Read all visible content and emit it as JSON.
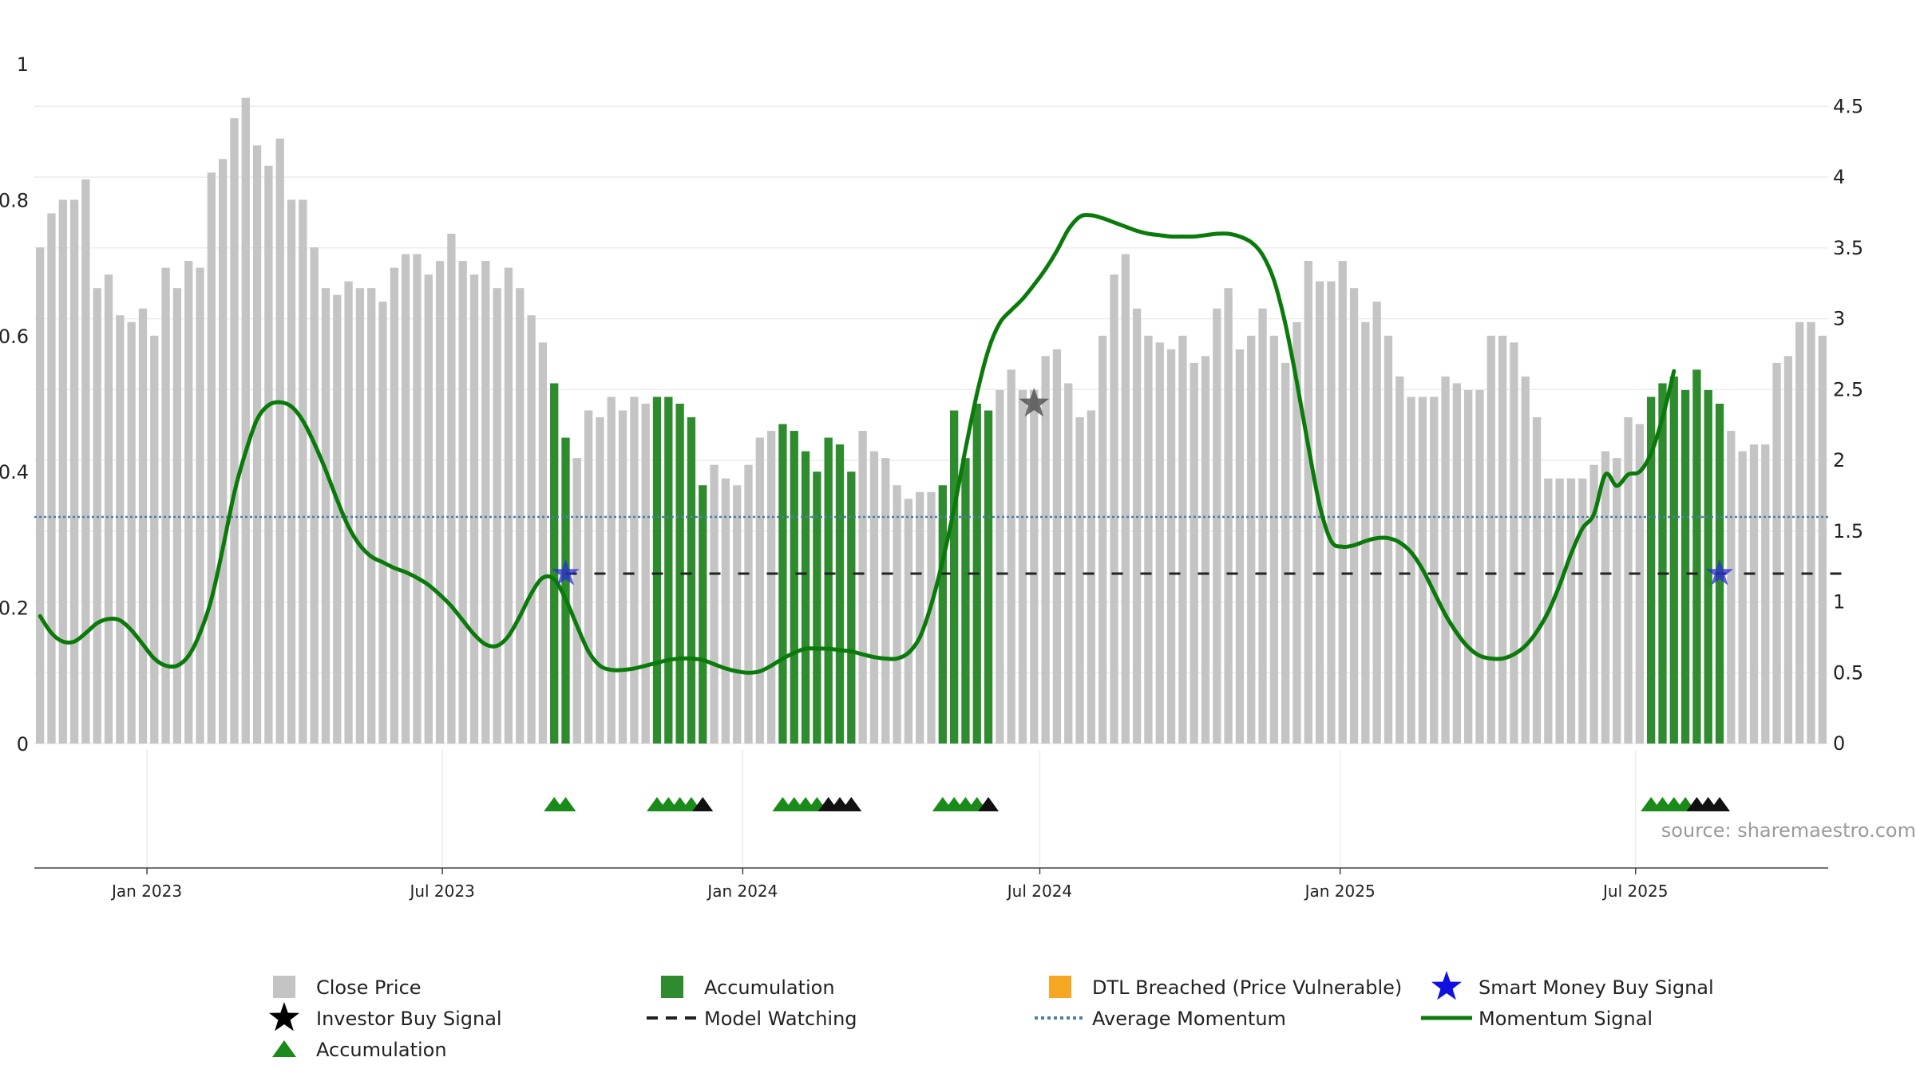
{
  "source_text": "source: sharemaestro.com",
  "colors": {
    "close_price": "#c4c4c4",
    "accumulation_bar": "#2e8b2e",
    "momentum": "#0a7a0a",
    "average": "#4a7fa8",
    "watching": "#222222",
    "investor_star": "#555555",
    "smart_star": "#2b2bd6",
    "triangle_green": "#1a8a1a",
    "triangle_black": "#111111",
    "dtl": "#f5a623"
  },
  "chart_data": {
    "type": "bar",
    "x_start": "2022-10-24",
    "x_interval_days": 7,
    "xaxis_ticks": [
      "Jan 2023",
      "Jul 2023",
      "Jan 2024",
      "Jul 2024",
      "Jan 2025",
      "Jul 2025"
    ],
    "left_axis": {
      "ylim": [
        0,
        1
      ],
      "ticks": [
        "0",
        "0.2",
        "0.4",
        "0.6",
        "0.8",
        "1"
      ]
    },
    "right_axis": {
      "ylim": [
        0,
        4.8
      ],
      "ticks": [
        "0",
        "0.5",
        "1",
        "1.5",
        "2",
        "2.5",
        "3",
        "3.5",
        "4",
        "4.5"
      ]
    },
    "close_price": [
      0.73,
      0.78,
      0.8,
      0.8,
      0.83,
      0.67,
      0.69,
      0.63,
      0.62,
      0.64,
      0.6,
      0.7,
      0.67,
      0.71,
      0.7,
      0.84,
      0.86,
      0.92,
      0.95,
      0.88,
      0.85,
      0.89,
      0.8,
      0.8,
      0.73,
      0.67,
      0.66,
      0.68,
      0.67,
      0.67,
      0.65,
      0.7,
      0.72,
      0.72,
      0.69,
      0.71,
      0.75,
      0.71,
      0.69,
      0.71,
      0.67,
      0.7,
      0.67,
      0.63,
      0.59,
      0.53,
      0.45,
      0.42,
      0.49,
      0.48,
      0.51,
      0.49,
      0.51,
      0.5,
      0.51,
      0.51,
      0.5,
      0.48,
      0.38,
      0.41,
      0.39,
      0.38,
      0.41,
      0.45,
      0.46,
      0.47,
      0.46,
      0.43,
      0.4,
      0.45,
      0.44,
      0.4,
      0.46,
      0.43,
      0.42,
      0.38,
      0.36,
      0.37,
      0.37,
      0.38,
      0.49,
      0.42,
      0.5,
      0.49,
      0.52,
      0.55,
      0.52,
      0.52,
      0.57,
      0.58,
      0.53,
      0.48,
      0.49,
      0.6,
      0.69,
      0.72,
      0.64,
      0.6,
      0.59,
      0.58,
      0.6,
      0.56,
      0.57,
      0.64,
      0.67,
      0.58,
      0.6,
      0.64,
      0.6,
      0.56,
      0.62,
      0.71,
      0.68,
      0.68,
      0.71,
      0.67,
      0.62,
      0.65,
      0.6,
      0.54,
      0.51,
      0.51,
      0.51,
      0.54,
      0.53,
      0.52,
      0.52,
      0.6,
      0.6,
      0.59,
      0.54,
      0.48,
      0.39,
      0.39,
      0.39,
      0.39,
      0.41,
      0.43,
      0.42,
      0.48,
      0.47,
      0.51,
      0.53,
      0.54,
      0.52,
      0.55,
      0.52,
      0.5,
      0.46,
      0.43,
      0.44,
      0.44,
      0.56,
      0.57,
      0.62,
      0.62,
      0.6
    ],
    "accumulation_weeks": [
      45,
      46,
      54,
      55,
      56,
      57,
      58,
      65,
      66,
      67,
      68,
      69,
      70,
      71,
      79,
      80,
      81,
      82,
      83,
      141,
      142,
      143,
      144,
      145,
      146,
      147
    ],
    "momentum_signal": [
      0.9,
      0.78,
      0.72,
      0.72,
      0.78,
      0.85,
      0.88,
      0.87,
      0.8,
      0.7,
      0.6,
      0.55,
      0.55,
      0.62,
      0.78,
      1.02,
      1.38,
      1.77,
      2.06,
      2.29,
      2.39,
      2.41,
      2.38,
      2.28,
      2.12,
      1.93,
      1.72,
      1.53,
      1.4,
      1.32,
      1.28,
      1.24,
      1.21,
      1.17,
      1.12,
      1.05,
      0.97,
      0.87,
      0.77,
      0.7,
      0.69,
      0.76,
      0.9,
      1.06,
      1.17,
      1.16,
      1.02,
      0.83,
      0.65,
      0.55,
      0.52,
      0.52,
      0.53,
      0.55,
      0.57,
      0.59,
      0.6,
      0.6,
      0.59,
      0.56,
      0.53,
      0.51,
      0.5,
      0.51,
      0.55,
      0.6,
      0.64,
      0.67,
      0.67,
      0.67,
      0.66,
      0.65,
      0.63,
      0.61,
      0.6,
      0.6,
      0.64,
      0.75,
      0.98,
      1.29,
      1.66,
      2.08,
      2.47,
      2.78,
      2.97,
      3.06,
      3.14,
      3.24,
      3.35,
      3.48,
      3.63,
      3.72,
      3.73,
      3.71,
      3.68,
      3.65,
      3.62,
      3.6,
      3.59,
      3.58,
      3.58,
      3.58,
      3.59,
      3.6,
      3.6,
      3.58,
      3.54,
      3.45,
      3.27,
      2.96,
      2.55,
      2.1,
      1.68,
      1.43,
      1.39,
      1.4,
      1.43,
      1.45,
      1.45,
      1.42,
      1.35,
      1.23,
      1.07,
      0.91,
      0.78,
      0.68,
      0.62,
      0.6,
      0.6,
      0.63,
      0.69,
      0.79,
      0.93,
      1.12,
      1.34,
      1.52,
      1.62,
      1.9,
      1.82,
      1.9,
      1.92,
      2.05,
      2.3,
      2.63
    ],
    "average_momentum": 1.6,
    "model_watching": {
      "value": 1.2,
      "from_week": 46,
      "to_week": 158
    },
    "investor_buy_signals": [
      {
        "week": 87,
        "value": 0.5
      }
    ],
    "smart_money_buy_signals": [
      {
        "week": 46,
        "value": 1.2
      },
      {
        "week": 147,
        "value": 1.2
      }
    ],
    "triangles": [
      {
        "week": 45,
        "color": "green"
      },
      {
        "week": 46,
        "color": "green"
      },
      {
        "week": 54,
        "color": "green"
      },
      {
        "week": 55,
        "color": "green"
      },
      {
        "week": 56,
        "color": "green"
      },
      {
        "week": 57,
        "color": "green"
      },
      {
        "week": 58,
        "color": "black"
      },
      {
        "week": 65,
        "color": "green"
      },
      {
        "week": 66,
        "color": "green"
      },
      {
        "week": 67,
        "color": "green"
      },
      {
        "week": 68,
        "color": "green"
      },
      {
        "week": 69,
        "color": "black"
      },
      {
        "week": 70,
        "color": "black"
      },
      {
        "week": 71,
        "color": "black"
      },
      {
        "week": 79,
        "color": "green"
      },
      {
        "week": 80,
        "color": "green"
      },
      {
        "week": 81,
        "color": "green"
      },
      {
        "week": 82,
        "color": "green"
      },
      {
        "week": 83,
        "color": "black"
      },
      {
        "week": 141,
        "color": "green"
      },
      {
        "week": 142,
        "color": "green"
      },
      {
        "week": 143,
        "color": "green"
      },
      {
        "week": 144,
        "color": "green"
      },
      {
        "week": 145,
        "color": "black"
      },
      {
        "week": 146,
        "color": "black"
      },
      {
        "week": 147,
        "color": "black"
      }
    ],
    "legend": [
      {
        "label": "Close Price",
        "symbol": "square",
        "color": "#c4c4c4"
      },
      {
        "label": "Accumulation",
        "symbol": "square",
        "color": "#2e8b2e"
      },
      {
        "label": "DTL Breached (Price Vulnerable)",
        "symbol": "square",
        "color": "#f5a623"
      },
      {
        "label": "Smart Money Buy Signal",
        "symbol": "star",
        "color": "#1010e0"
      },
      {
        "label": "Investor Buy Signal",
        "symbol": "star",
        "color": "#000000"
      },
      {
        "label": "Model Watching",
        "symbol": "dash",
        "color": "#222222"
      },
      {
        "label": "Average Momentum",
        "symbol": "dot",
        "color": "#4a7fa8"
      },
      {
        "label": "Momentum Signal",
        "symbol": "line",
        "color": "#0a7a0a"
      },
      {
        "label": "Accumulation",
        "symbol": "triangle",
        "color": "#1a8a1a"
      }
    ]
  }
}
